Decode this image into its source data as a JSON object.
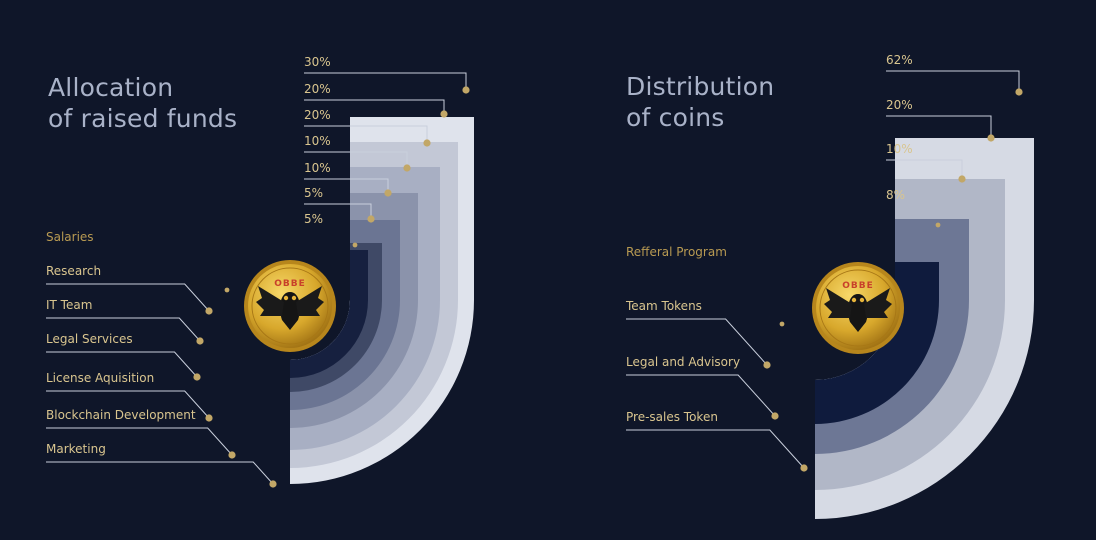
{
  "colors": {
    "background": "#0f1629",
    "title": "#a9b2c8",
    "category_label": "#d9c58f",
    "percent_label": "#d9c58f",
    "leader_line": "#c9cfdc",
    "leader_dot": "#c2a767",
    "coin_gold": "#d8a82c"
  },
  "coin": {
    "icon": "owl-coin-icon",
    "text": "OBBE"
  },
  "chart_data": [
    {
      "type": "pie",
      "title_lines": [
        "Allocation",
        "of raised funds"
      ],
      "unit": "%",
      "slices": [
        {
          "label": "Marketing",
          "value": 30,
          "value_label": "30%",
          "color": "#dfe3ec"
        },
        {
          "label": "Blockchain Development",
          "value": 20,
          "value_label": "20%",
          "color": "#c3c8d6"
        },
        {
          "label": "License Aquisition",
          "value": 20,
          "value_label": "20%",
          "color": "#a8afc3"
        },
        {
          "label": "Legal Services",
          "value": 10,
          "value_label": "10%",
          "color": "#8b93ab"
        },
        {
          "label": "IT Team",
          "value": 10,
          "value_label": "10%",
          "color": "#6b7593"
        },
        {
          "label": "Research",
          "value": 5,
          "value_label": "5%",
          "color": "#3f4966"
        },
        {
          "label": "Salaries",
          "value": 5,
          "value_label": "5%",
          "color": "#16203f"
        }
      ]
    },
    {
      "type": "pie",
      "title_lines": [
        "Distribution",
        "of coins"
      ],
      "unit": "%",
      "slices": [
        {
          "label": "Pre-sales Token",
          "value": 62,
          "value_label": "62%",
          "color": "#d6dae4"
        },
        {
          "label": "Legal and Advisory",
          "value": 20,
          "value_label": "20%",
          "color": "#b1b7c7"
        },
        {
          "label": "Team Tokens",
          "value": 10,
          "value_label": "10%",
          "color": "#6d7795"
        },
        {
          "label": "Refferal Program",
          "value": 8,
          "value_label": "8%",
          "color": "#0f1b3d"
        }
      ]
    }
  ]
}
